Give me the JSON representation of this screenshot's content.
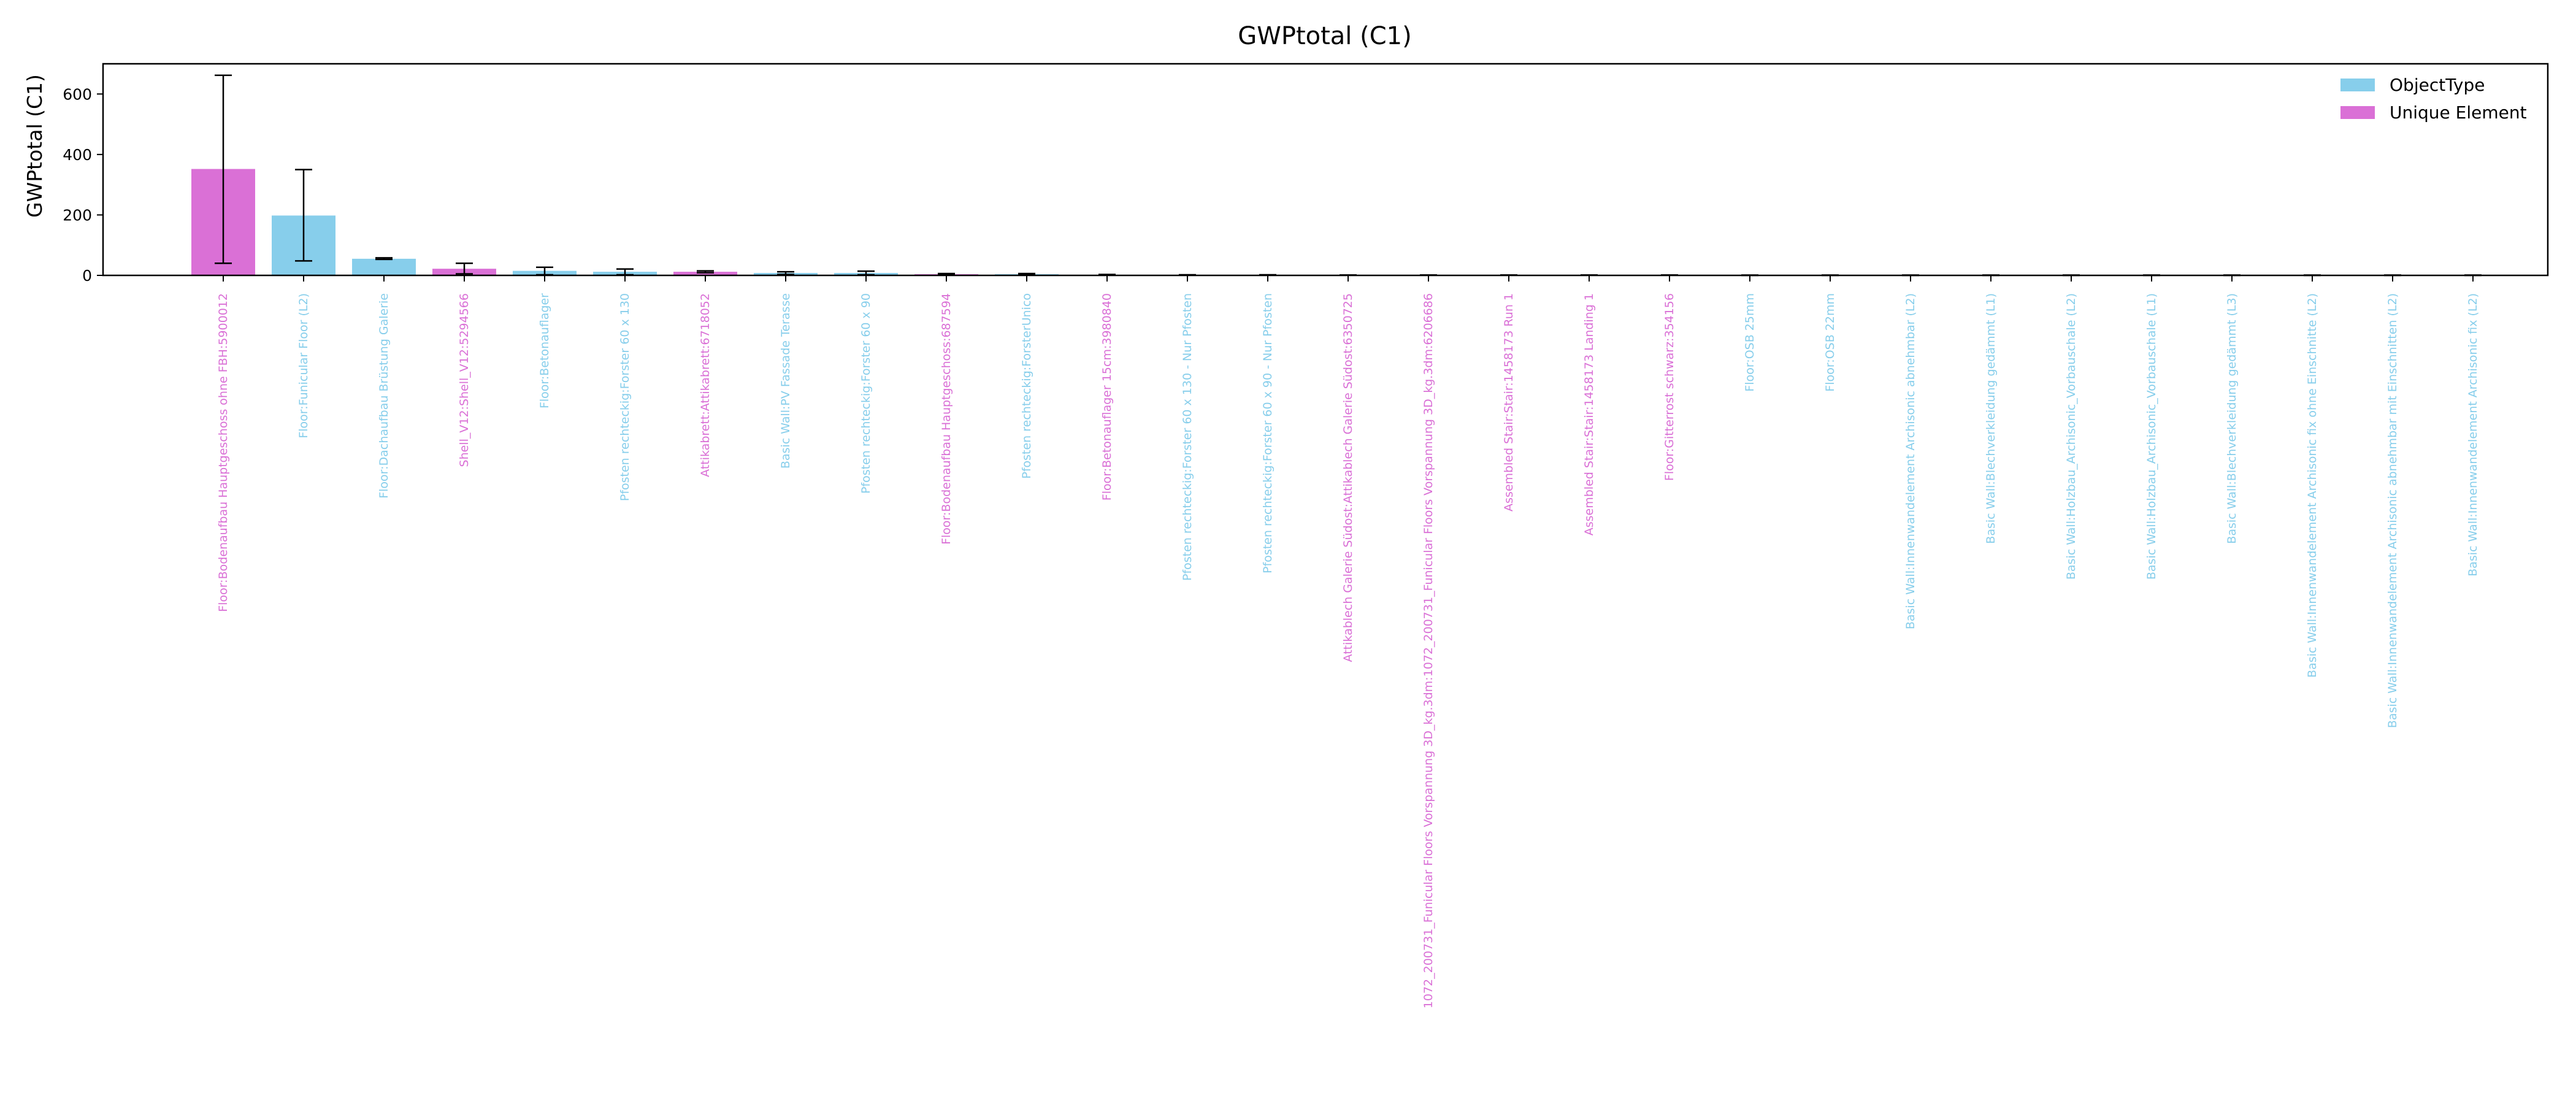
{
  "chart_data": {
    "type": "bar",
    "title": "GWPtotal (C1)",
    "xlabel": "",
    "ylabel": "GWPtotal (C1)",
    "ylim": [
      0,
      700
    ],
    "yticks": [
      0,
      200,
      400,
      600
    ],
    "grid": false,
    "legend_position": "top-right",
    "series_names": [
      "ObjectType",
      "Unique Element"
    ],
    "colors": {
      "ObjectType": "#87ceeb",
      "Unique Element": "#da70d6",
      "errorbar": "#000000"
    },
    "categories": [
      "Floor:Bodenaufbau Hauptgeschoss ohne FBH:5900012",
      "Floor:Funicular Floor (L2)",
      "Floor:Dachaufbau Brüstung Galerie",
      "Shell_V12:Shell_V12:5294566",
      "Floor:Betonauflager",
      "Pfosten rechteckig:Forster 60 x 130",
      "Attikabrett:Attikabrett:6718052",
      "Basic Wall:PV Fassade Terasse",
      "Pfosten rechteckig:Forster 60 x 90",
      "Floor:Bodenaufbau Hauptgeschoss:687594",
      "Pfosten rechteckig:ForsterUnico",
      "Floor:Betonauflager 15cm:3980840",
      "Pfosten rechteckig:Forster 60 x 130 - Nur Pfosten",
      "Pfosten rechteckig:Forster 60 x 90 - Nur Pfosten",
      "Attikablech Galerie Südost:Attikablech Galerie Südost:6350725",
      "1072_200731_Funicular Floors Vorspannung 3D_kg.3dm:1072_200731_Funicular Floors Vorspannung 3D_kg.3dm:6206686",
      "Assembled Stair:Stair:1458173 Run 1",
      "Assembled Stair:Stair:1458173 Landing 1",
      "Floor:Gitterrost schwarz:354156",
      "Floor:OSB 25mm",
      "Floor:OSB 22mm",
      "Basic Wall:Innenwandelement Archisonic abnehmbar (L2)",
      "Basic Wall:Blechverkleidung gedämmt (L1)",
      "Basic Wall:Holzbau_Archisonic_Vorbauschale (L2)",
      "Basic Wall:Holzbau_Archisonic_Vorbauschale (L1)",
      "Basic Wall:Blechverkleidung gedämmt (L3)",
      "Basic Wall:Innenwandelement Archisonic fix ohne Einschnitte (L2)",
      "Basic Wall:Innenwandelement Archisonic abnehmbar mit Einschnitten (L2)",
      "Basic Wall:Innenwandelement Archisonic fix (L2)"
    ],
    "group": [
      "Unique Element",
      "ObjectType",
      "ObjectType",
      "Unique Element",
      "ObjectType",
      "ObjectType",
      "Unique Element",
      "ObjectType",
      "ObjectType",
      "Unique Element",
      "ObjectType",
      "Unique Element",
      "ObjectType",
      "ObjectType",
      "Unique Element",
      "Unique Element",
      "Unique Element",
      "Unique Element",
      "Unique Element",
      "ObjectType",
      "ObjectType",
      "ObjectType",
      "ObjectType",
      "ObjectType",
      "ObjectType",
      "ObjectType",
      "ObjectType",
      "ObjectType",
      "ObjectType"
    ],
    "values": [
      352,
      198,
      55,
      22,
      15,
      12,
      12,
      8,
      8,
      4,
      4,
      2,
      1.5,
      1.5,
      1,
      1,
      1,
      1,
      1,
      0.5,
      0.5,
      0.5,
      0.5,
      0.5,
      0.5,
      0.5,
      0.5,
      0.5,
      0.5
    ],
    "error_low": [
      40,
      48,
      53,
      5,
      2,
      2,
      9,
      3,
      2,
      2,
      2,
      1,
      1,
      1,
      1,
      1,
      1,
      1,
      1,
      0,
      0,
      0,
      0,
      0,
      0,
      0,
      0,
      0,
      0
    ],
    "error_high": [
      662,
      350,
      58,
      40,
      27,
      21,
      15,
      12,
      14,
      6,
      6,
      3,
      2,
      2,
      1,
      1,
      1,
      1,
      1,
      1,
      1,
      1,
      1,
      1,
      1,
      1,
      1,
      1,
      1
    ]
  }
}
